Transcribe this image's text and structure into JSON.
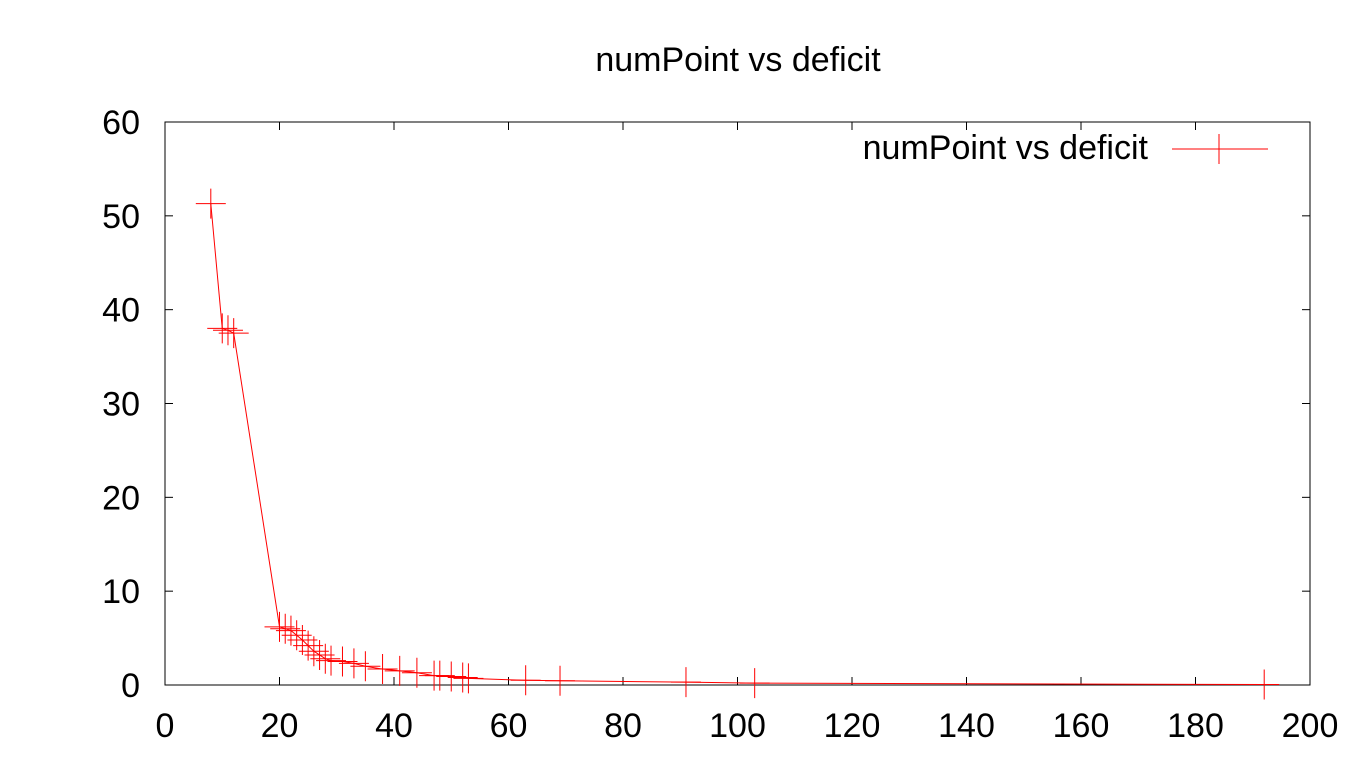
{
  "chart_data": {
    "type": "line",
    "title": "numPoint vs deficit",
    "xlabel": "",
    "ylabel": "",
    "xlim": [
      0,
      200
    ],
    "ylim": [
      0,
      60
    ],
    "x_ticks": [
      "0",
      "20",
      "40",
      "60",
      "80",
      "100",
      "120",
      "140",
      "160",
      "180",
      "200"
    ],
    "y_ticks": [
      "0",
      "10",
      "20",
      "30",
      "40",
      "50",
      "60"
    ],
    "grid": false,
    "legend_position": "top-right",
    "series": [
      {
        "name": "numPoint vs deficit",
        "color": "#ff0000",
        "marker": "plus",
        "points": [
          [
            8,
            51.3
          ],
          [
            10,
            38.0
          ],
          [
            11,
            37.8
          ],
          [
            12,
            37.5
          ],
          [
            20,
            6.2
          ],
          [
            21,
            6.0
          ],
          [
            22,
            5.8
          ],
          [
            23,
            5.3
          ],
          [
            24,
            4.8
          ],
          [
            25,
            4.2
          ],
          [
            26,
            3.6
          ],
          [
            27,
            3.2
          ],
          [
            28,
            2.8
          ],
          [
            29,
            2.6
          ],
          [
            31,
            2.5
          ],
          [
            33,
            2.3
          ],
          [
            35,
            2.0
          ],
          [
            38,
            1.7
          ],
          [
            41,
            1.5
          ],
          [
            44,
            1.3
          ],
          [
            47,
            1.0
          ],
          [
            48,
            1.0
          ],
          [
            50,
            0.9
          ],
          [
            52,
            0.8
          ],
          [
            53,
            0.7
          ],
          [
            63,
            0.5
          ],
          [
            69,
            0.45
          ],
          [
            91,
            0.3
          ],
          [
            103,
            0.2
          ],
          [
            192,
            0.05
          ]
        ]
      }
    ]
  }
}
